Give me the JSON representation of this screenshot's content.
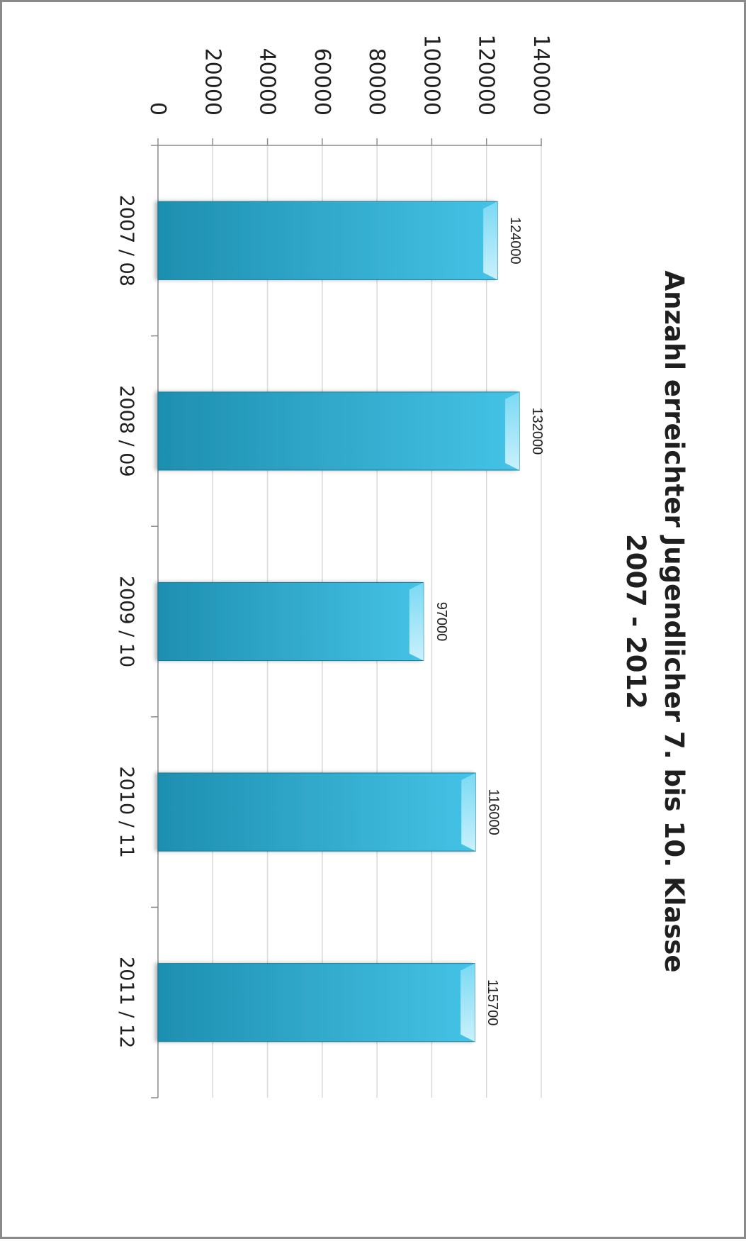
{
  "chart_data": {
    "type": "bar",
    "title": "Anzahl erreichter Jugendlicher 7. bis 10. Klasse",
    "subtitle": "2007 - 2012",
    "categories": [
      "2007 / 08",
      "2008 / 09",
      "2009 / 10",
      "2010 / 11",
      "2011 / 12"
    ],
    "values": [
      124000,
      132000,
      97000,
      116000,
      115700
    ],
    "data_labels": [
      "124000",
      "132000",
      "97000",
      "116000",
      "115700"
    ],
    "ylim": [
      0,
      140000
    ],
    "yticks": [
      0,
      20000,
      40000,
      60000,
      80000,
      100000,
      120000,
      140000
    ],
    "ytick_labels": [
      "0",
      "20000",
      "40000",
      "60000",
      "80000",
      "100000",
      "120000",
      "140000"
    ],
    "xlabel": "",
    "ylabel": "",
    "grid": true,
    "legend": "none",
    "orientation": "rotated 90 degrees clockwise",
    "colors": {
      "bar_light": "#45c3e6",
      "bar_dark": "#1e8fb0",
      "bar_edge": "#177a97",
      "gridline": "#d9d9d9",
      "axis": "#8c8c8c"
    }
  }
}
